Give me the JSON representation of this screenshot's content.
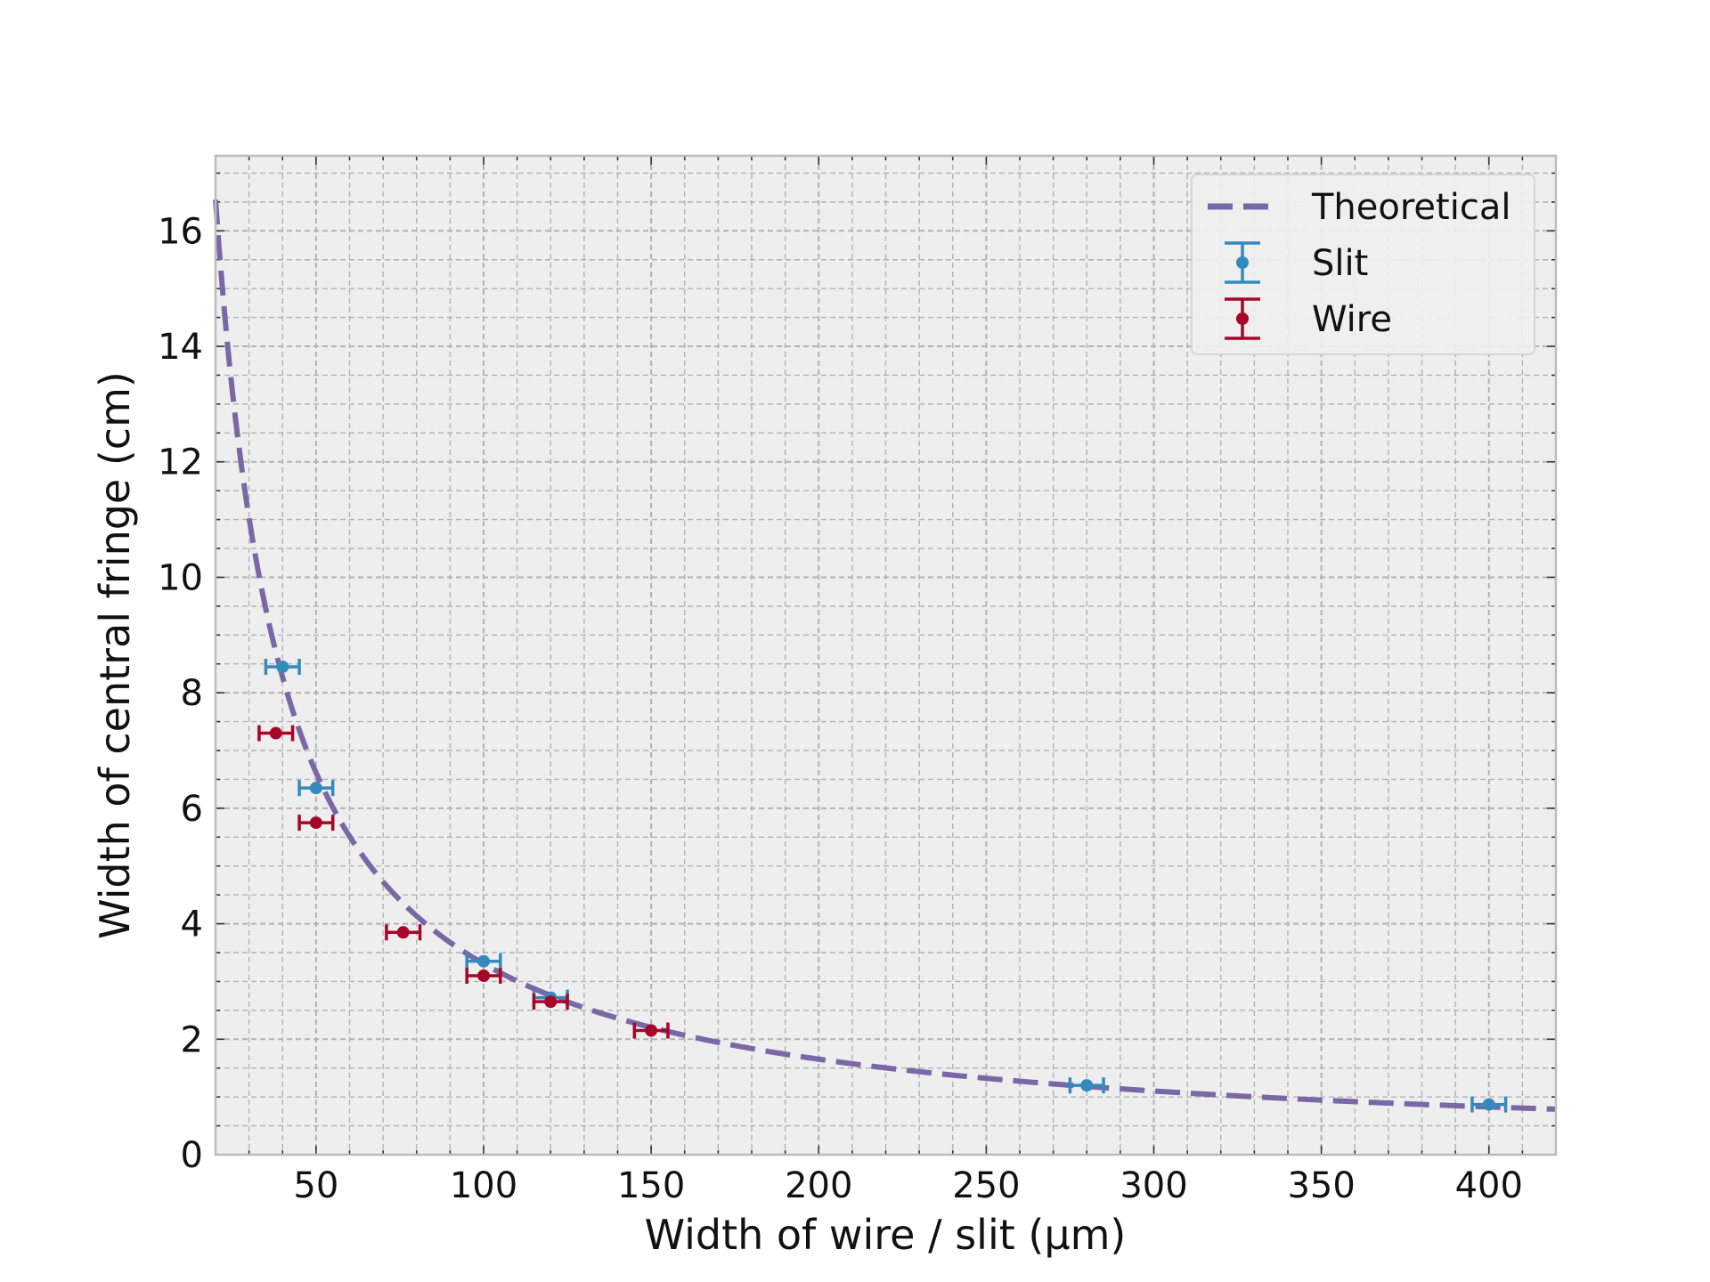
{
  "chart_data": {
    "type": "scatter",
    "title": "",
    "xlabel": "Width of wire / slit (µm)",
    "ylabel": "Width of central fringe (cm)",
    "xlim": [
      20,
      420
    ],
    "ylim": [
      0,
      17.3
    ],
    "xticks": [
      50,
      100,
      150,
      200,
      250,
      300,
      350,
      400
    ],
    "yticks": [
      0,
      2,
      4,
      6,
      8,
      10,
      12,
      14,
      16
    ],
    "grid": true,
    "legend_position": "top-right",
    "theoretical": {
      "name": "Theoretical",
      "color": "#7a68a6",
      "style": "dashed",
      "model": "y = k / x",
      "k": 330.8
    },
    "series": [
      {
        "name": "Slit",
        "color": "#348abd",
        "points": [
          {
            "x": 40,
            "y": 8.45,
            "xerr": 5
          },
          {
            "x": 50,
            "y": 6.35,
            "xerr": 5
          },
          {
            "x": 100,
            "y": 3.35,
            "xerr": 5
          },
          {
            "x": 120,
            "y": 2.72,
            "xerr": 5
          },
          {
            "x": 280,
            "y": 1.2,
            "xerr": 5
          },
          {
            "x": 400,
            "y": 0.87,
            "xerr": 5
          }
        ]
      },
      {
        "name": "Wire",
        "color": "#a60628",
        "points": [
          {
            "x": 38,
            "y": 7.3,
            "xerr": 5
          },
          {
            "x": 50,
            "y": 5.75,
            "xerr": 5
          },
          {
            "x": 76,
            "y": 3.85,
            "xerr": 5
          },
          {
            "x": 100,
            "y": 3.1,
            "xerr": 5
          },
          {
            "x": 120,
            "y": 2.65,
            "xerr": 5
          },
          {
            "x": 150,
            "y": 2.15,
            "xerr": 5
          }
        ]
      }
    ]
  }
}
